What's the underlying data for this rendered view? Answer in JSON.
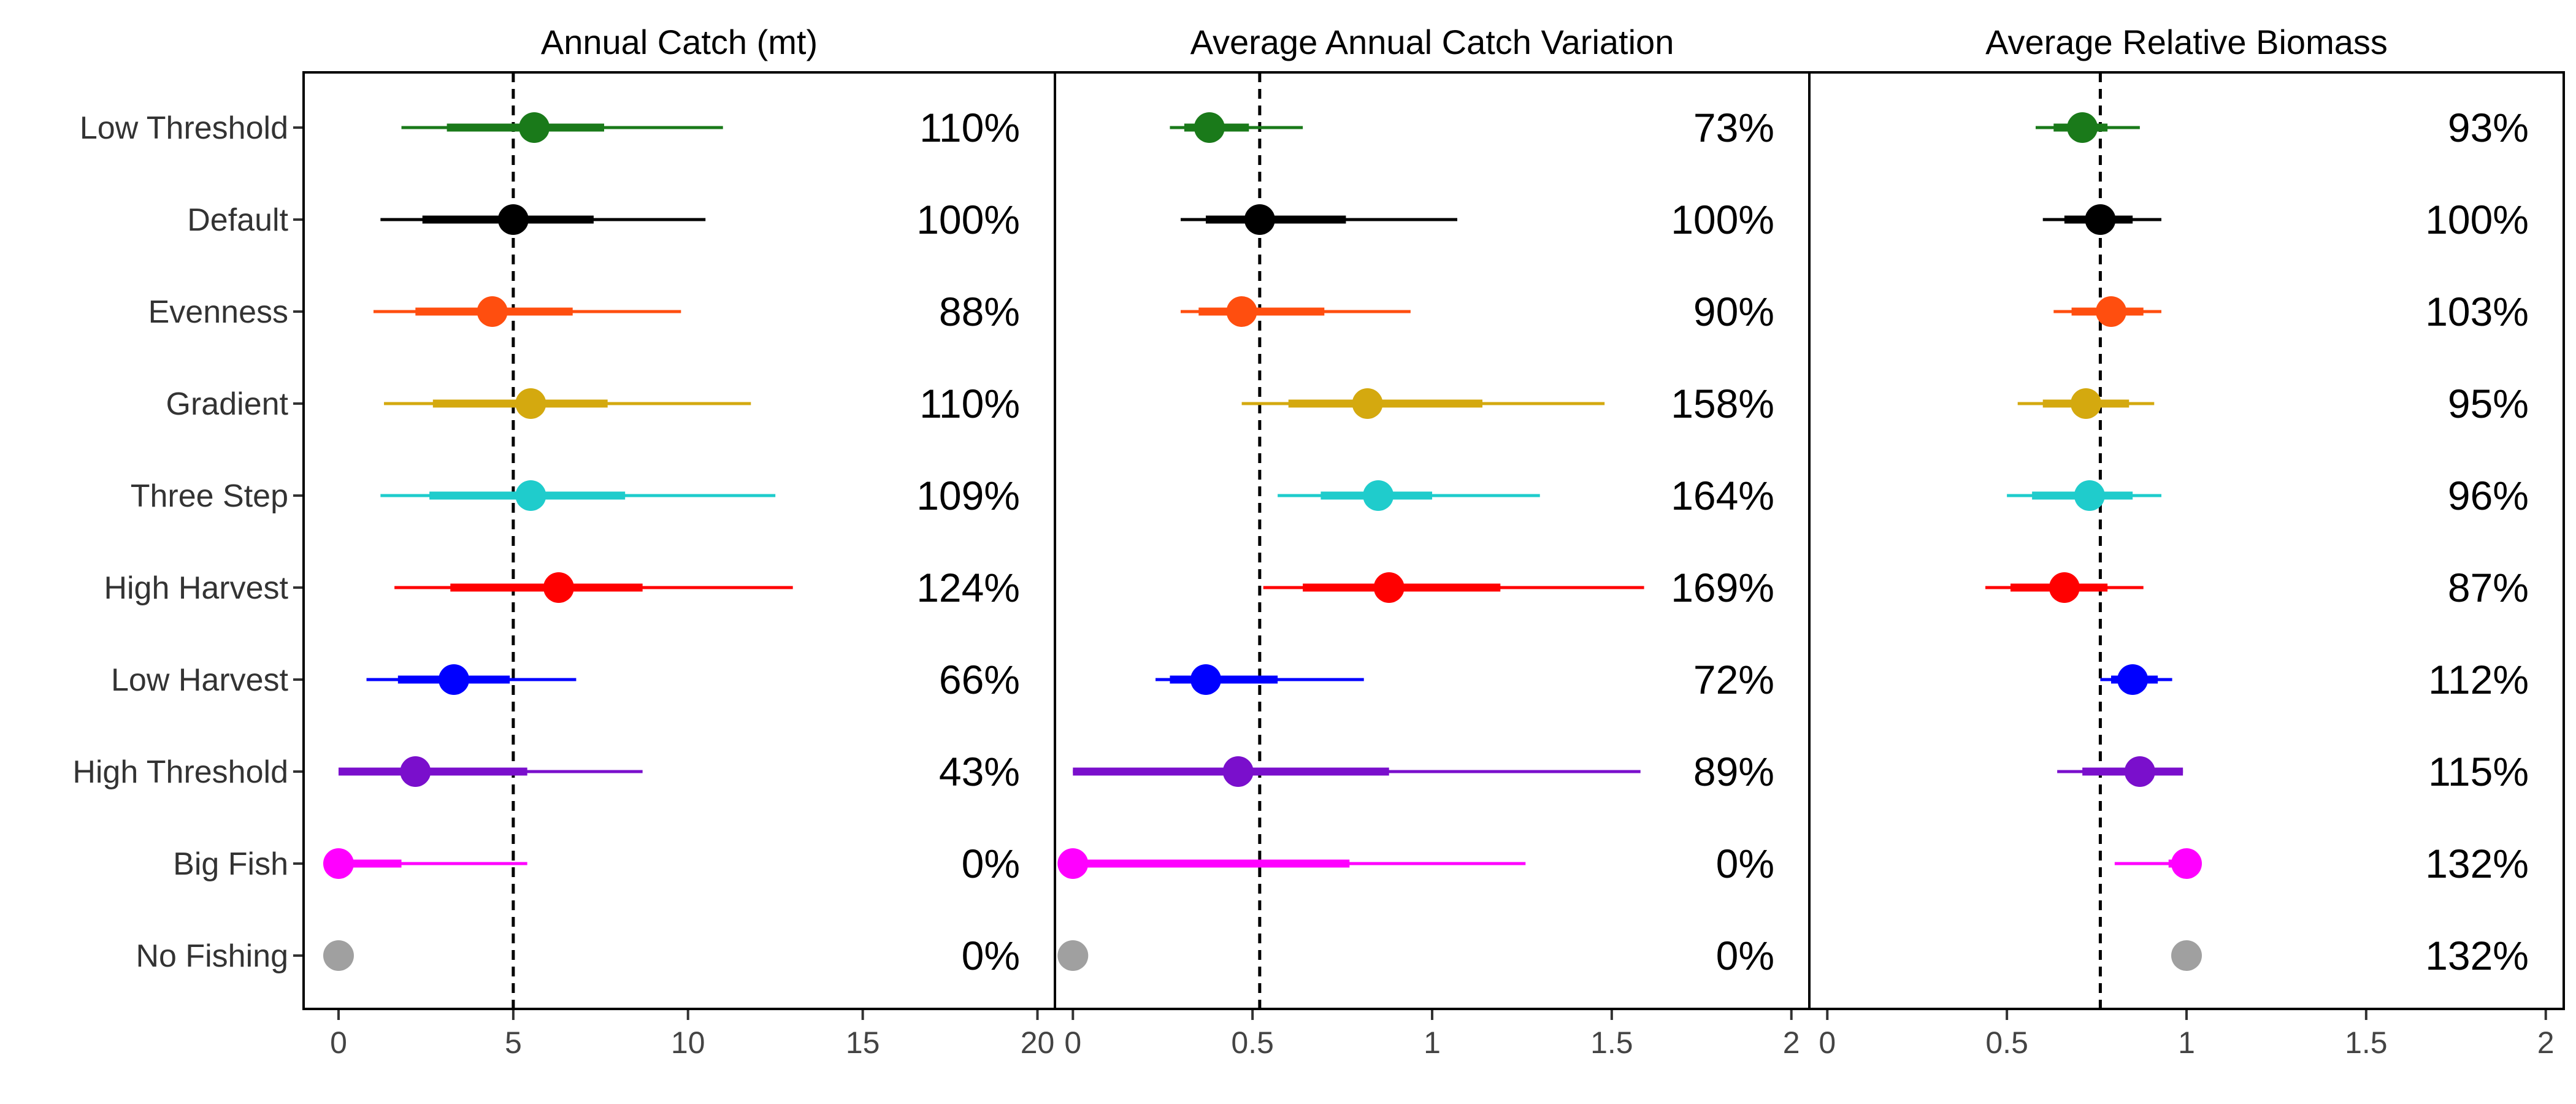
{
  "chart_data": {
    "type": "forest",
    "categories": [
      "Low Threshold",
      "Default",
      "Evenness",
      "Gradient",
      "Three Step",
      "High Harvest",
      "Low Harvest",
      "High Threshold",
      "Big Fish",
      "No Fishing"
    ],
    "colors": [
      "#1a7a1a",
      "#000000",
      "#ff4e0f",
      "#d4a90f",
      "#1fcccc",
      "#ff0000",
      "#0000ff",
      "#7a0fcc",
      "#ff00ff",
      "#a0a0a0"
    ],
    "panels": [
      {
        "title": "Annual Catch (mt)",
        "xlim": [
          -1,
          20.5
        ],
        "ticks": [
          0,
          5,
          10,
          15,
          20
        ],
        "tick_labels": [
          "0",
          "5",
          "10",
          "15",
          "20"
        ],
        "reference_line": 5,
        "points": [
          {
            "median": 5.6,
            "inner": [
              3.1,
              7.6
            ],
            "outer": [
              1.8,
              11.0
            ],
            "percent": "110%"
          },
          {
            "median": 5.0,
            "inner": [
              2.4,
              7.3
            ],
            "outer": [
              1.2,
              10.5
            ],
            "percent": "100%"
          },
          {
            "median": 4.4,
            "inner": [
              2.2,
              6.7
            ],
            "outer": [
              1.0,
              9.8
            ],
            "percent": "88%"
          },
          {
            "median": 5.5,
            "inner": [
              2.7,
              7.7
            ],
            "outer": [
              1.3,
              11.8
            ],
            "percent": "110%"
          },
          {
            "median": 5.5,
            "inner": [
              2.6,
              8.2
            ],
            "outer": [
              1.2,
              12.5
            ],
            "percent": "109%"
          },
          {
            "median": 6.3,
            "inner": [
              3.2,
              8.7
            ],
            "outer": [
              1.6,
              13.0
            ],
            "percent": "124%"
          },
          {
            "median": 3.3,
            "inner": [
              1.7,
              4.9
            ],
            "outer": [
              0.8,
              6.8
            ],
            "percent": "66%"
          },
          {
            "median": 2.2,
            "inner": [
              0.0,
              5.4
            ],
            "outer": [
              0.0,
              8.7
            ],
            "percent": "43%"
          },
          {
            "median": 0.0,
            "inner": [
              0.0,
              1.8
            ],
            "outer": [
              0.0,
              5.4
            ],
            "percent": "0%"
          },
          {
            "median": 0.0,
            "inner": [
              0.0,
              0.0
            ],
            "outer": [
              0.0,
              0.0
            ],
            "percent": "0%"
          }
        ]
      },
      {
        "title": "Average Annual Catch Variation",
        "xlim": [
          -0.05,
          2.05
        ],
        "ticks": [
          0,
          0.5,
          1,
          1.5,
          2
        ],
        "tick_labels": [
          "0",
          "0.5",
          "1",
          "1.5",
          "2"
        ],
        "reference_line": 0.52,
        "points": [
          {
            "median": 0.38,
            "inner": [
              0.31,
              0.49
            ],
            "outer": [
              0.27,
              0.64
            ],
            "percent": "73%"
          },
          {
            "median": 0.52,
            "inner": [
              0.37,
              0.76
            ],
            "outer": [
              0.3,
              1.07
            ],
            "percent": "100%"
          },
          {
            "median": 0.47,
            "inner": [
              0.35,
              0.7
            ],
            "outer": [
              0.3,
              0.94
            ],
            "percent": "90%"
          },
          {
            "median": 0.82,
            "inner": [
              0.6,
              1.14
            ],
            "outer": [
              0.47,
              1.48
            ],
            "percent": "158%"
          },
          {
            "median": 0.85,
            "inner": [
              0.69,
              1.0
            ],
            "outer": [
              0.57,
              1.3
            ],
            "percent": "164%"
          },
          {
            "median": 0.88,
            "inner": [
              0.64,
              1.19
            ],
            "outer": [
              0.53,
              1.59
            ],
            "percent": "169%"
          },
          {
            "median": 0.37,
            "inner": [
              0.27,
              0.57
            ],
            "outer": [
              0.23,
              0.81
            ],
            "percent": "72%"
          },
          {
            "median": 0.46,
            "inner": [
              0.0,
              0.88
            ],
            "outer": [
              0.0,
              1.58
            ],
            "percent": "89%"
          },
          {
            "median": 0.0,
            "inner": [
              0.0,
              0.77
            ],
            "outer": [
              0.0,
              1.26
            ],
            "percent": "0%"
          },
          {
            "median": 0.0,
            "inner": [
              0.0,
              0.0
            ],
            "outer": [
              0.0,
              0.0
            ],
            "percent": "0%"
          }
        ]
      },
      {
        "title": "Average Relative Biomass",
        "xlim": [
          -0.05,
          2.05
        ],
        "ticks": [
          0,
          0.5,
          1,
          1.5,
          2
        ],
        "tick_labels": [
          "0",
          "0.5",
          "1",
          "1.5",
          "2"
        ],
        "reference_line": 0.76,
        "points": [
          {
            "median": 0.71,
            "inner": [
              0.63,
              0.78
            ],
            "outer": [
              0.58,
              0.87
            ],
            "percent": "93%"
          },
          {
            "median": 0.76,
            "inner": [
              0.66,
              0.85
            ],
            "outer": [
              0.6,
              0.93
            ],
            "percent": "100%"
          },
          {
            "median": 0.79,
            "inner": [
              0.68,
              0.88
            ],
            "outer": [
              0.63,
              0.93
            ],
            "percent": "103%"
          },
          {
            "median": 0.72,
            "inner": [
              0.6,
              0.84
            ],
            "outer": [
              0.53,
              0.91
            ],
            "percent": "95%"
          },
          {
            "median": 0.73,
            "inner": [
              0.57,
              0.85
            ],
            "outer": [
              0.5,
              0.93
            ],
            "percent": "96%"
          },
          {
            "median": 0.66,
            "inner": [
              0.51,
              0.78
            ],
            "outer": [
              0.44,
              0.88
            ],
            "percent": "87%"
          },
          {
            "median": 0.85,
            "inner": [
              0.79,
              0.92
            ],
            "outer": [
              0.76,
              0.96
            ],
            "percent": "112%"
          },
          {
            "median": 0.87,
            "inner": [
              0.71,
              0.99
            ],
            "outer": [
              0.64,
              0.99
            ],
            "percent": "115%"
          },
          {
            "median": 1.0,
            "inner": [
              0.95,
              1.0
            ],
            "outer": [
              0.8,
              1.0
            ],
            "percent": "132%"
          },
          {
            "median": 1.0,
            "inner": [
              1.0,
              1.0
            ],
            "outer": [
              1.0,
              1.0
            ],
            "percent": "132%"
          }
        ]
      }
    ]
  }
}
